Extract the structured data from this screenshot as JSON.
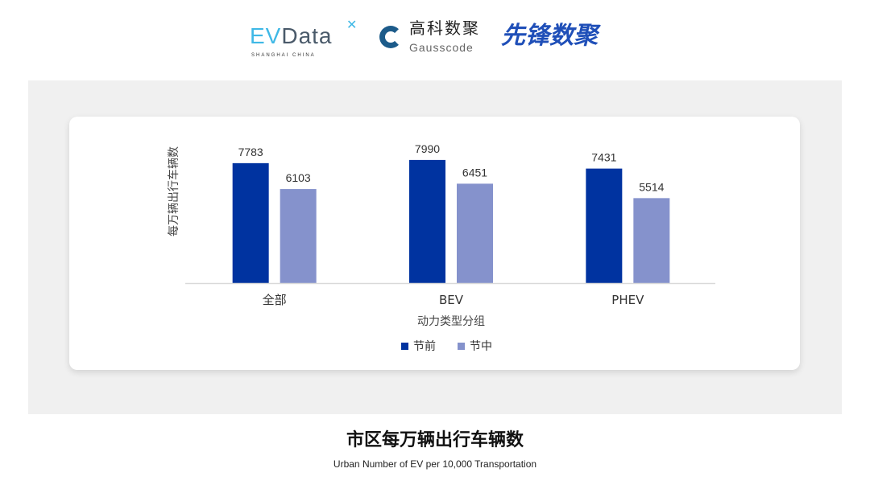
{
  "logos": {
    "evdata": "EVData",
    "evdata_sub": "SHANGHAI CHINA",
    "gauss_cn": "高科数聚",
    "gauss_en": "Gausscode",
    "xianfeng": "先锋数聚"
  },
  "title": "市区每万辆出行车辆数",
  "subtitle": "Urban Number of EV per 10,000 Transportation",
  "chart_data": {
    "type": "bar",
    "categories": [
      "全部",
      "BEV",
      "PHEV"
    ],
    "series": [
      {
        "name": "节前",
        "values": [
          7783,
          7990,
          7431
        ],
        "color": "#0033a0"
      },
      {
        "name": "节中",
        "values": [
          6103,
          6451,
          5514
        ],
        "color": "#8592cc"
      }
    ],
    "xlabel": "动力类型分组",
    "ylabel": "每万辆出行车辆数",
    "ylim": [
      0,
      8350
    ],
    "grid": false,
    "legend": "bottom"
  }
}
